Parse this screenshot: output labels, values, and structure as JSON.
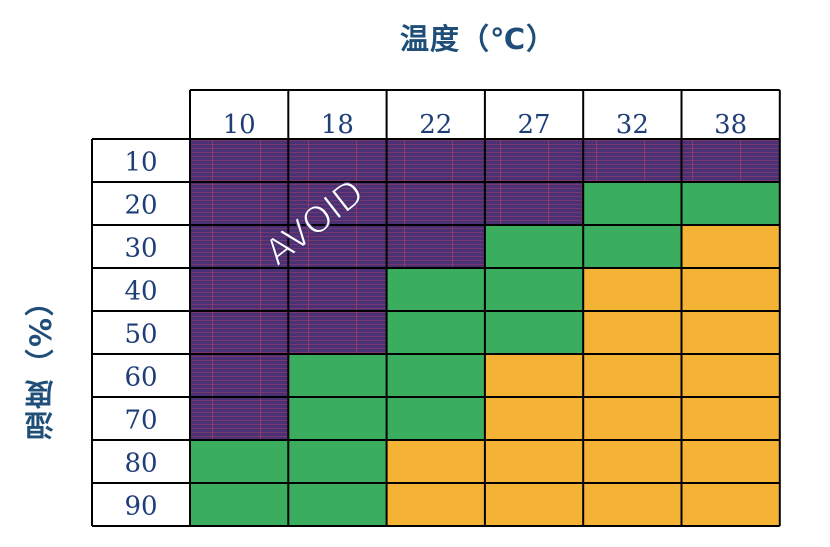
{
  "chart_data": {
    "type": "heatmap",
    "title_top": "温度（℃）",
    "title_left": "湿度（%）",
    "x_categories": [
      "10",
      "18",
      "22",
      "27",
      "32",
      "38"
    ],
    "y_categories": [
      "10",
      "20",
      "30",
      "40",
      "50",
      "60",
      "70",
      "80",
      "90"
    ],
    "cell_values": [
      [
        "avoid",
        "avoid",
        "avoid",
        "avoid",
        "avoid",
        "avoid"
      ],
      [
        "avoid",
        "avoid",
        "avoid",
        "avoid",
        "green",
        "green"
      ],
      [
        "avoid",
        "avoid",
        "avoid",
        "green",
        "green",
        "orange"
      ],
      [
        "avoid",
        "avoid",
        "green",
        "green",
        "orange",
        "orange"
      ],
      [
        "avoid",
        "avoid",
        "green",
        "green",
        "orange",
        "orange"
      ],
      [
        "avoid",
        "green",
        "green",
        "orange",
        "orange",
        "orange"
      ],
      [
        "avoid",
        "green",
        "green",
        "orange",
        "orange",
        "orange"
      ],
      [
        "green",
        "green",
        "orange",
        "orange",
        "orange",
        "orange"
      ],
      [
        "green",
        "green",
        "orange",
        "orange",
        "orange",
        "orange"
      ]
    ],
    "annotation": "AVOID",
    "colors": {
      "avoid": "#4a3175",
      "avoid_stripe": "#b03a5a",
      "green": "#3aae5e",
      "orange": "#f5b335",
      "label": "#1f3e78",
      "title": "#1f4e79",
      "border": "#000000"
    }
  }
}
